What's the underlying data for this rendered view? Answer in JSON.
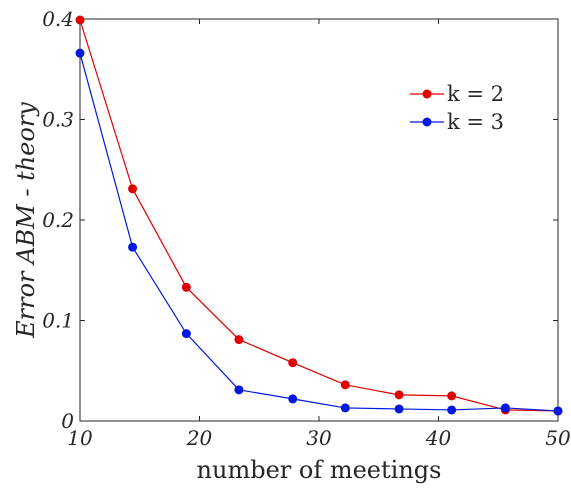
{
  "chart_data": {
    "type": "line",
    "xlabel": "number of meetings",
    "ylabel": "Error ABM - theory",
    "xlim": [
      10,
      50
    ],
    "ylim": [
      0,
      0.4
    ],
    "xticks": [
      10,
      20,
      30,
      40,
      50
    ],
    "xtick_labels": [
      "10",
      "20",
      "30",
      "40",
      "50"
    ],
    "yticks": [
      0,
      0.1,
      0.2,
      0.3,
      0.4
    ],
    "ytick_labels": [
      "0",
      "0.1",
      "0.2",
      "0.3",
      "0.4"
    ],
    "grid": false,
    "legend_position": "top-right",
    "x": [
      10,
      14.4,
      18.9,
      23.3,
      27.8,
      32.2,
      36.7,
      41.1,
      45.6,
      50
    ],
    "series": [
      {
        "name": "k = 2",
        "color": "#e00000",
        "values": [
          0.399,
          0.231,
          0.133,
          0.081,
          0.058,
          0.036,
          0.026,
          0.025,
          0.011,
          0.01
        ]
      },
      {
        "name": "k = 3",
        "color": "#0018e0",
        "values": [
          0.366,
          0.173,
          0.087,
          0.031,
          0.022,
          0.013,
          0.012,
          0.011,
          0.013,
          0.01
        ]
      }
    ]
  }
}
